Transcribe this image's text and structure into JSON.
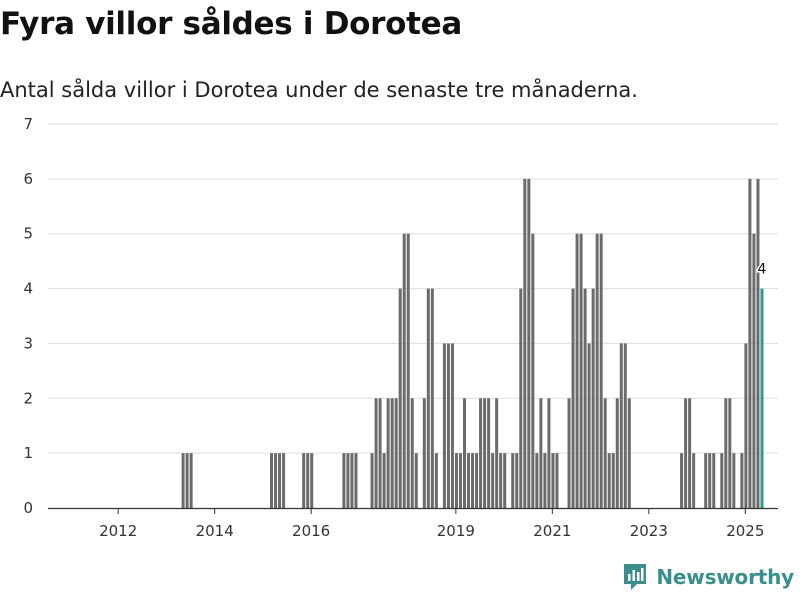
{
  "title": "Fyra villor såldes i Dorotea",
  "subtitle": "Antal sålda villor i Dorotea under de senaste tre månaderna.",
  "brand": {
    "name": "Newsworthy",
    "logo_icon": "newsworthy-logo-icon",
    "color": "#3a8f8c"
  },
  "colors": {
    "bar": "#6b6b6b",
    "highlight": "#2a9d8f",
    "grid": "#dddddd",
    "axis": "#333333"
  },
  "chart_data": {
    "type": "bar",
    "title": "Fyra villor såldes i Dorotea",
    "xlabel": "",
    "ylabel": "",
    "ylim": [
      0,
      7
    ],
    "yticks": [
      "0",
      "1",
      "2",
      "3",
      "4",
      "5",
      "6",
      "7"
    ],
    "xticks": [
      {
        "label": "2012",
        "year": 2012
      },
      {
        "label": "2014",
        "year": 2014
      },
      {
        "label": "2016",
        "year": 2016
      },
      {
        "label": "2019",
        "year": 2019
      },
      {
        "label": "2021",
        "year": 2021
      },
      {
        "label": "2023",
        "year": 2023
      },
      {
        "label": "2025",
        "year": 2025
      }
    ],
    "start_period": "2011-04",
    "period": "rolling three months, monthly",
    "values": [
      0,
      0,
      0,
      0,
      0,
      0,
      0,
      0,
      0,
      0,
      0,
      0,
      0,
      0,
      0,
      0,
      0,
      0,
      0,
      0,
      0,
      0,
      0,
      0,
      0,
      0,
      0,
      0,
      0,
      0,
      1,
      1,
      1,
      0,
      0,
      0,
      0,
      0,
      0,
      0,
      0,
      0,
      0,
      0,
      0,
      0,
      0,
      0,
      0,
      0,
      0,
      0,
      1,
      1,
      1,
      1,
      0,
      0,
      0,
      0,
      1,
      1,
      1,
      0,
      0,
      0,
      0,
      0,
      0,
      0,
      1,
      1,
      1,
      1,
      0,
      0,
      0,
      1,
      2,
      2,
      1,
      2,
      2,
      2,
      4,
      5,
      5,
      2,
      1,
      0,
      2,
      4,
      4,
      1,
      0,
      3,
      3,
      3,
      1,
      1,
      2,
      1,
      1,
      1,
      2,
      2,
      2,
      1,
      2,
      1,
      1,
      0,
      1,
      1,
      4,
      6,
      6,
      5,
      1,
      2,
      1,
      2,
      1,
      1,
      0,
      0,
      2,
      4,
      5,
      5,
      4,
      3,
      4,
      5,
      5,
      2,
      1,
      1,
      2,
      3,
      3,
      2,
      0,
      0,
      0,
      0,
      0,
      0,
      0,
      0,
      0,
      0,
      0,
      0,
      1,
      2,
      2,
      1,
      0,
      0,
      1,
      1,
      1,
      0,
      1,
      2,
      2,
      1,
      0,
      1,
      3,
      6,
      5,
      6,
      4
    ],
    "highlight_last": true,
    "last_value_label": "4"
  }
}
